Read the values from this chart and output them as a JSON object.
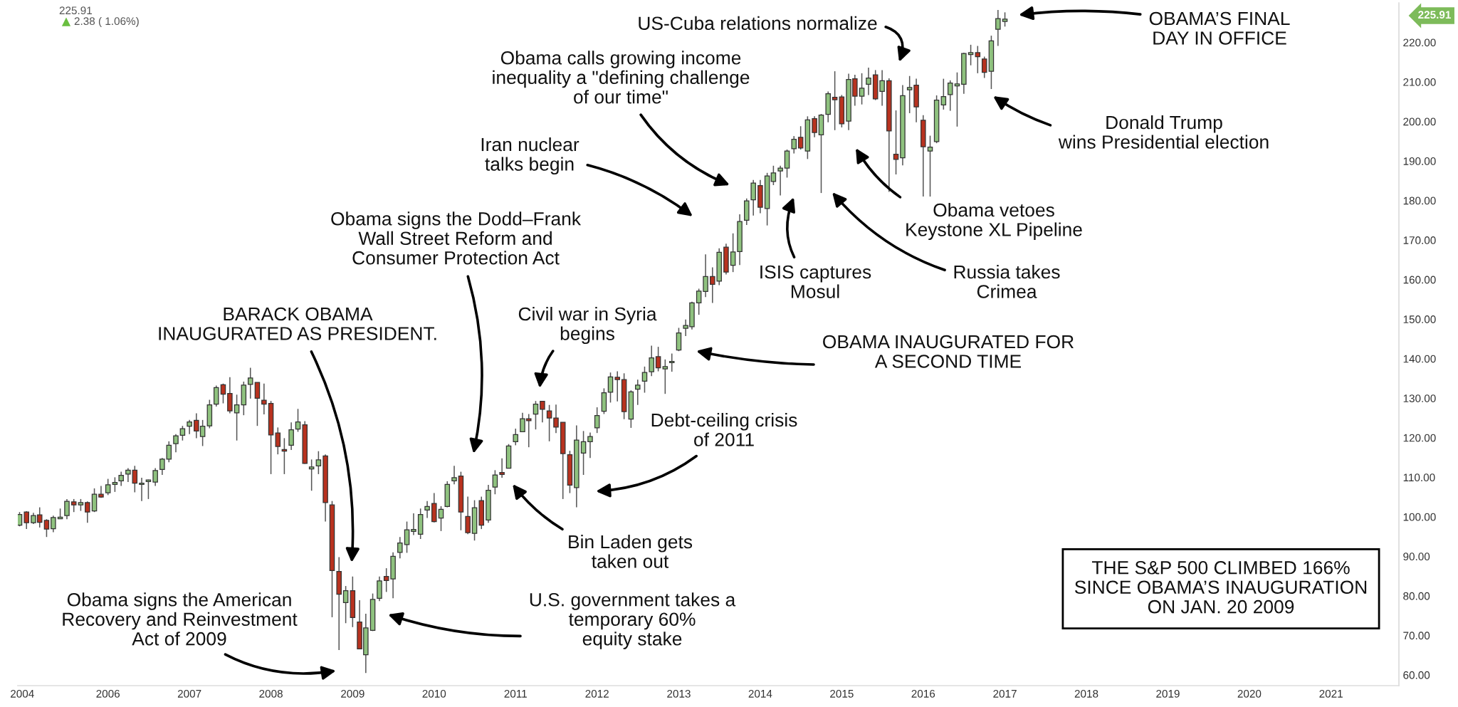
{
  "chart_data": {
    "type": "candlestick",
    "x": [
      "2004-12",
      "2005-01",
      "2005-02",
      "2005-03",
      "2005-04",
      "2005-05",
      "2005-06",
      "2005-07",
      "2005-08",
      "2005-09",
      "2005-10",
      "2005-11",
      "2005-12",
      "2006-01",
      "2006-02",
      "2006-03",
      "2006-04",
      "2006-05",
      "2006-06",
      "2006-07",
      "2006-08",
      "2006-09",
      "2006-10",
      "2006-11",
      "2006-12",
      "2007-01",
      "2007-02",
      "2007-03",
      "2007-04",
      "2007-05",
      "2007-06",
      "2007-07",
      "2007-08",
      "2007-09",
      "2007-10",
      "2007-11",
      "2007-12",
      "2008-01",
      "2008-02",
      "2008-03",
      "2008-04",
      "2008-05",
      "2008-06",
      "2008-07",
      "2008-08",
      "2008-09",
      "2008-10",
      "2008-11",
      "2008-12",
      "2009-01",
      "2009-02",
      "2009-03",
      "2009-04",
      "2009-05",
      "2009-06",
      "2009-07",
      "2009-08",
      "2009-09",
      "2009-10",
      "2009-11",
      "2009-12",
      "2010-01",
      "2010-02",
      "2010-03",
      "2010-04",
      "2010-05",
      "2010-06",
      "2010-07",
      "2010-08",
      "2010-09",
      "2010-10",
      "2010-11",
      "2010-12",
      "2011-01",
      "2011-02",
      "2011-03",
      "2011-04",
      "2011-05",
      "2011-06",
      "2011-07",
      "2011-08",
      "2011-09",
      "2011-10",
      "2011-11",
      "2011-12",
      "2012-01",
      "2012-02",
      "2012-03",
      "2012-04",
      "2012-05",
      "2012-06",
      "2012-07",
      "2012-08",
      "2012-09",
      "2012-10",
      "2012-11",
      "2012-12",
      "2013-01",
      "2013-02",
      "2013-03",
      "2013-04",
      "2013-05",
      "2013-06",
      "2013-07",
      "2013-08",
      "2013-09",
      "2013-10",
      "2013-11",
      "2013-12",
      "2014-01",
      "2014-02",
      "2014-03",
      "2014-04",
      "2014-05",
      "2014-06",
      "2014-07",
      "2014-08",
      "2014-09",
      "2014-10",
      "2014-11",
      "2014-12",
      "2015-01",
      "2015-02",
      "2015-03",
      "2015-04",
      "2015-05",
      "2015-06",
      "2015-07",
      "2015-08",
      "2015-09",
      "2015-10",
      "2015-11",
      "2015-12",
      "2016-01",
      "2016-02",
      "2016-03",
      "2016-04",
      "2016-05",
      "2016-06",
      "2016-07",
      "2016-08",
      "2016-09",
      "2016-10",
      "2016-11",
      "2016-12",
      "2017-01"
    ],
    "ohlc": [
      [
        97.9,
        101.2,
        97.6,
        100.6
      ],
      [
        101.2,
        101.4,
        96.9,
        98.5
      ],
      [
        98.5,
        101.0,
        98.2,
        100.3
      ],
      [
        100.5,
        102.4,
        97.3,
        98.6
      ],
      [
        99.1,
        99.4,
        94.9,
        96.9
      ],
      [
        97.0,
        100.3,
        96.1,
        99.8
      ],
      [
        99.5,
        102.1,
        99.5,
        99.9
      ],
      [
        100.3,
        104.5,
        99.4,
        103.9
      ],
      [
        103.8,
        104.5,
        101.2,
        103.0
      ],
      [
        103.0,
        104.5,
        101.5,
        103.6
      ],
      [
        103.6,
        103.9,
        98.5,
        101.2
      ],
      [
        101.5,
        107.2,
        101.2,
        105.7
      ],
      [
        105.7,
        107.8,
        104.8,
        105.0
      ],
      [
        106.1,
        109.6,
        105.5,
        108.1
      ],
      [
        108.2,
        110.0,
        106.3,
        108.7
      ],
      [
        109.1,
        111.4,
        107.8,
        110.5
      ],
      [
        110.8,
        112.3,
        108.8,
        111.8
      ],
      [
        111.8,
        112.9,
        106.2,
        108.5
      ],
      [
        108.2,
        109.9,
        104.0,
        108.5
      ],
      [
        108.9,
        109.4,
        104.5,
        109.3
      ],
      [
        108.8,
        112.3,
        107.8,
        111.7
      ],
      [
        112.0,
        114.9,
        110.6,
        114.6
      ],
      [
        114.6,
        119.1,
        113.8,
        118.1
      ],
      [
        118.5,
        120.9,
        116.3,
        120.5
      ],
      [
        120.6,
        123.0,
        119.3,
        122.3
      ],
      [
        122.9,
        124.5,
        120.9,
        124.0
      ],
      [
        124.4,
        126.2,
        119.9,
        121.7
      ],
      [
        120.3,
        124.5,
        117.9,
        122.9
      ],
      [
        123.0,
        129.6,
        122.4,
        128.3
      ],
      [
        128.5,
        133.2,
        127.9,
        132.7
      ],
      [
        133.4,
        133.7,
        128.7,
        131.0
      ],
      [
        131.2,
        135.3,
        126.2,
        126.8
      ],
      [
        126.3,
        130.9,
        119.3,
        128.3
      ],
      [
        128.3,
        134.2,
        125.7,
        133.3
      ],
      [
        133.5,
        137.7,
        129.9,
        135.1
      ],
      [
        134.0,
        134.0,
        123.0,
        130.0
      ],
      [
        129.5,
        133.7,
        125.9,
        128.5
      ],
      [
        128.7,
        129.3,
        110.8,
        120.7
      ],
      [
        121.2,
        122.6,
        115.8,
        117.8
      ],
      [
        117.0,
        119.9,
        110.8,
        116.6
      ],
      [
        118.1,
        123.9,
        116.9,
        122.0
      ],
      [
        122.2,
        127.3,
        121.5,
        124.0
      ],
      [
        123.3,
        124.2,
        113.4,
        113.5
      ],
      [
        112.1,
        114.5,
        106.6,
        112.6
      ],
      [
        112.9,
        116.6,
        110.8,
        114.4
      ],
      [
        115.4,
        115.8,
        98.8,
        103.6
      ],
      [
        103.0,
        104.0,
        74.6,
        86.4
      ],
      [
        86.2,
        89.8,
        66.3,
        80.4
      ],
      [
        78.3,
        82.5,
        73.1,
        81.3
      ],
      [
        81.3,
        84.9,
        72.1,
        74.5
      ],
      [
        73.4,
        78.9,
        66.5,
        66.6
      ],
      [
        65.1,
        75.5,
        60.5,
        71.9
      ],
      [
        71.3,
        80.6,
        71.1,
        79.1
      ],
      [
        79.4,
        84.9,
        78.7,
        83.8
      ],
      [
        84.9,
        87.0,
        81.0,
        83.9
      ],
      [
        84.3,
        91.0,
        79.4,
        90.0
      ],
      [
        91.0,
        94.9,
        89.5,
        93.4
      ],
      [
        93.0,
        98.8,
        90.9,
        96.7
      ],
      [
        96.3,
        100.9,
        95.4,
        96.8
      ],
      [
        95.6,
        102.1,
        94.4,
        100.6
      ],
      [
        101.7,
        104.0,
        99.7,
        102.6
      ],
      [
        103.4,
        106.0,
        98.6,
        98.8
      ],
      [
        99.7,
        102.7,
        96.4,
        101.9
      ],
      [
        102.6,
        109.0,
        102.4,
        108.2
      ],
      [
        109.1,
        112.9,
        108.2,
        109.9
      ],
      [
        110.3,
        111.4,
        96.6,
        101.2
      ],
      [
        100.1,
        105.1,
        95.6,
        96.0
      ],
      [
        95.8,
        104.2,
        94.0,
        102.3
      ],
      [
        104.1,
        105.1,
        96.9,
        97.9
      ],
      [
        99.2,
        108.1,
        98.5,
        106.7
      ],
      [
        107.5,
        111.8,
        105.7,
        110.6
      ],
      [
        111.2,
        114.8,
        109.9,
        110.7
      ],
      [
        112.3,
        118.4,
        112.3,
        117.9
      ],
      [
        119.0,
        122.3,
        118.1,
        120.8
      ],
      [
        121.5,
        126.3,
        121.5,
        124.8
      ],
      [
        124.8,
        126.0,
        117.6,
        124.3
      ],
      [
        126.0,
        129.3,
        122.1,
        128.5
      ],
      [
        129.2,
        129.3,
        123.9,
        127.2
      ],
      [
        126.8,
        128.3,
        119.1,
        125.0
      ],
      [
        125.0,
        128.4,
        121.2,
        122.7
      ],
      [
        123.9,
        123.9,
        104.5,
        116.0
      ],
      [
        115.7,
        116.7,
        106.0,
        108.0
      ],
      [
        107.4,
        123.1,
        102.4,
        119.4
      ],
      [
        116.1,
        121.7,
        110.6,
        119.0
      ],
      [
        119.0,
        121.3,
        114.9,
        120.3
      ],
      [
        122.5,
        127.7,
        121.2,
        125.6
      ],
      [
        126.7,
        132.5,
        126.0,
        131.4
      ],
      [
        131.5,
        136.5,
        128.9,
        135.4
      ],
      [
        135.3,
        136.8,
        129.2,
        134.7
      ],
      [
        134.7,
        136.3,
        124.7,
        126.6
      ],
      [
        124.7,
        132.0,
        122.5,
        131.6
      ],
      [
        132.3,
        134.7,
        128.3,
        133.3
      ],
      [
        134.3,
        138.0,
        131.4,
        136.5
      ],
      [
        136.7,
        143.3,
        135.6,
        140.2
      ],
      [
        140.5,
        143.0,
        136.8,
        137.7
      ],
      [
        137.4,
        139.8,
        131.1,
        138.0
      ],
      [
        139.0,
        141.3,
        136.7,
        139.3
      ],
      [
        142.2,
        147.8,
        141.9,
        146.5
      ],
      [
        147.7,
        149.9,
        145.7,
        148.4
      ],
      [
        148.1,
        154.4,
        147.4,
        154.1
      ],
      [
        154.1,
        157.7,
        151.1,
        157.1
      ],
      [
        157.0,
        166.4,
        155.6,
        160.8
      ],
      [
        160.8,
        163.1,
        154.1,
        158.8
      ],
      [
        159.6,
        167.9,
        158.6,
        166.9
      ],
      [
        168.2,
        169.1,
        161.3,
        161.9
      ],
      [
        163.6,
        171.7,
        161.9,
        167.0
      ],
      [
        167.1,
        176.5,
        163.7,
        174.7
      ],
      [
        175.0,
        180.5,
        173.8,
        179.9
      ],
      [
        180.2,
        185.2,
        176.2,
        184.4
      ],
      [
        183.8,
        185.2,
        176.8,
        178.3
      ],
      [
        178.0,
        187.0,
        173.7,
        186.2
      ],
      [
        184.8,
        188.8,
        183.9,
        187.0
      ],
      [
        187.5,
        188.8,
        181.3,
        188.2
      ],
      [
        188.2,
        192.9,
        185.8,
        192.5
      ],
      [
        193.1,
        196.3,
        191.9,
        195.5
      ],
      [
        196.0,
        198.8,
        192.9,
        193.3
      ],
      [
        192.5,
        201.3,
        190.5,
        200.4
      ],
      [
        200.7,
        201.3,
        196.0,
        197.2
      ],
      [
        196.6,
        201.9,
        181.9,
        201.6
      ],
      [
        201.8,
        207.6,
        199.8,
        207.0
      ],
      [
        206.1,
        212.7,
        197.8,
        205.5
      ],
      [
        206.2,
        206.7,
        198.5,
        199.4
      ],
      [
        200.1,
        212.1,
        197.8,
        210.6
      ],
      [
        210.8,
        211.8,
        204.0,
        206.4
      ],
      [
        206.4,
        212.2,
        204.3,
        208.4
      ],
      [
        209.4,
        213.6,
        206.7,
        211.0
      ],
      [
        211.8,
        213.0,
        205.4,
        205.7
      ],
      [
        207.6,
        213.0,
        204.0,
        210.3
      ],
      [
        210.3,
        210.9,
        182.2,
        197.6
      ],
      [
        191.7,
        202.8,
        186.6,
        190.4
      ],
      [
        190.8,
        209.2,
        188.9,
        206.5
      ],
      [
        208.0,
        211.5,
        202.1,
        208.6
      ],
      [
        209.2,
        210.8,
        199.8,
        203.7
      ],
      [
        200.3,
        201.6,
        181.0,
        193.6
      ],
      [
        192.5,
        196.4,
        181.0,
        193.5
      ],
      [
        194.9,
        206.6,
        194.5,
        205.4
      ],
      [
        204.2,
        210.8,
        203.0,
        206.3
      ],
      [
        206.8,
        210.4,
        202.7,
        209.7
      ],
      [
        209.0,
        212.4,
        198.7,
        209.5
      ],
      [
        209.4,
        217.4,
        207.0,
        217.2
      ],
      [
        216.9,
        219.4,
        214.2,
        217.4
      ],
      [
        217.4,
        219.1,
        212.2,
        216.4
      ],
      [
        215.8,
        216.4,
        211.0,
        212.4
      ],
      [
        212.7,
        221.7,
        208.2,
        220.4
      ],
      [
        223.3,
        228.2,
        219.1,
        226.0
      ],
      [
        225.3,
        227.6,
        224.0,
        225.9
      ]
    ],
    "colors": [
      "#8fc27f",
      "#b8321f",
      "#8fc27f",
      "#b8321f",
      "#b8321f",
      "#8fc27f",
      "#8fc27f",
      "#8fc27f",
      "#b8321f",
      "#8fc27f",
      "#b8321f",
      "#8fc27f",
      "#b8321f",
      "#8fc27f",
      "#8fc27f",
      "#8fc27f",
      "#8fc27f",
      "#b8321f",
      "#8fc27f",
      "#8fc27f",
      "#8fc27f",
      "#8fc27f",
      "#8fc27f",
      "#8fc27f",
      "#8fc27f",
      "#8fc27f",
      "#b8321f",
      "#8fc27f",
      "#8fc27f",
      "#8fc27f",
      "#b8321f",
      "#b8321f",
      "#8fc27f",
      "#8fc27f",
      "#8fc27f",
      "#b8321f",
      "#b8321f",
      "#b8321f",
      "#b8321f",
      "#b8321f",
      "#8fc27f",
      "#8fc27f",
      "#b8321f",
      "#8fc27f",
      "#8fc27f",
      "#b8321f",
      "#b8321f",
      "#b8321f",
      "#8fc27f",
      "#b8321f",
      "#b8321f",
      "#8fc27f",
      "#8fc27f",
      "#8fc27f",
      "#b8321f",
      "#8fc27f",
      "#8fc27f",
      "#8fc27f",
      "#8fc27f",
      "#8fc27f",
      "#8fc27f",
      "#b8321f",
      "#8fc27f",
      "#8fc27f",
      "#8fc27f",
      "#b8321f",
      "#b8321f",
      "#8fc27f",
      "#b8321f",
      "#8fc27f",
      "#8fc27f",
      "#b8321f",
      "#8fc27f",
      "#8fc27f",
      "#8fc27f",
      "#b8321f",
      "#8fc27f",
      "#b8321f",
      "#b8321f",
      "#b8321f",
      "#b8321f",
      "#b8321f",
      "#8fc27f",
      "#8fc27f",
      "#8fc27f",
      "#8fc27f",
      "#8fc27f",
      "#8fc27f",
      "#b8321f",
      "#b8321f",
      "#8fc27f",
      "#8fc27f",
      "#8fc27f",
      "#8fc27f",
      "#b8321f",
      "#8fc27f",
      "#8fc27f",
      "#8fc27f",
      "#8fc27f",
      "#8fc27f",
      "#8fc27f",
      "#8fc27f",
      "#b8321f",
      "#8fc27f",
      "#b8321f",
      "#8fc27f",
      "#8fc27f",
      "#8fc27f",
      "#8fc27f",
      "#b8321f",
      "#8fc27f",
      "#8fc27f",
      "#8fc27f",
      "#8fc27f",
      "#8fc27f",
      "#b8321f",
      "#8fc27f",
      "#b8321f",
      "#8fc27f",
      "#8fc27f",
      "#b8321f",
      "#b8321f",
      "#8fc27f",
      "#b8321f",
      "#8fc27f",
      "#8fc27f",
      "#b8321f",
      "#8fc27f",
      "#b8321f",
      "#b8321f",
      "#8fc27f",
      "#8fc27f",
      "#b8321f",
      "#b8321f",
      "#8fc27f",
      "#8fc27f",
      "#8fc27f",
      "#8fc27f",
      "#8fc27f",
      "#8fc27f",
      "#8fc27f",
      "#b8321f",
      "#b8321f",
      "#8fc27f",
      "#8fc27f",
      "#8fc27f"
    ],
    "xlim": [
      "2004-11-23",
      "2021-11-01"
    ],
    "ylim": [
      57.3,
      230.0
    ],
    "xticks": [
      {
        "value": "2004-12-13",
        "label": "2004"
      },
      "2006",
      "2007",
      "2008",
      "2009",
      "2010",
      "2011",
      "2012",
      "2013",
      "2014",
      "2015",
      "2016",
      "2017",
      "2018",
      "2019",
      "2020",
      "2021"
    ],
    "yticks": [
      {
        "value": 60,
        "label": "60.00"
      },
      {
        "value": 70,
        "label": "70.00"
      },
      {
        "value": 80,
        "label": "80.00"
      },
      {
        "value": 90,
        "label": "90.00"
      },
      {
        "value": 100,
        "label": "100.00"
      },
      {
        "value": 110,
        "label": "110.00"
      },
      {
        "value": 120,
        "label": "120.00"
      },
      {
        "value": 130,
        "label": "130.00"
      },
      {
        "value": 140,
        "label": "140.00"
      },
      {
        "value": 150,
        "label": "150.00"
      },
      {
        "value": 160,
        "label": "160.00"
      },
      {
        "value": 170,
        "label": "170.00"
      },
      {
        "value": 180,
        "label": "180.00"
      },
      {
        "value": 190,
        "label": "190.00"
      },
      {
        "value": 200,
        "label": "200.00"
      },
      {
        "value": 210,
        "label": "210.00"
      },
      {
        "value": 220,
        "label": "220.00"
      }
    ],
    "annotations": [
      "225.91",
      "2.38 ( 1.06%)",
      "225.91",
      "BARACK OBAMA\nINAUGURATED AS PRESIDENT.",
      "Obama signs the American\nRecovery and Reinvestment\nAct of 2009",
      "U.S. government takes a\ntemporary 60%\nequity stake",
      "Obama signs the Dodd–Frank\nWall Street Reform and\nConsumer Protection Act",
      "Bin Laden gets\ntaken out",
      "Civil war in Syria\nbegins",
      "Debt-ceiling crisis\nof 2011",
      "OBAMA INAUGURATED FOR\nA SECOND TIME",
      "Iran nuclear\ntalks begin",
      "Obama calls growing income\ninequality a \"defining challenge\nof our time\"",
      "ISIS captures\nMosul",
      "Russia takes\nCrimea",
      "Obama vetoes\nKeystone XL Pipeline",
      "US-Cuba relations normalize",
      "Donald Trump\nwins Presidential election",
      "OBAMA’S FINAL\nDAY IN OFFICE",
      "THE S&P 500 CLIMBED 166%\nSINCE OBAMA’S INAUGURATION\nON JAN. 20 2009"
    ]
  }
}
